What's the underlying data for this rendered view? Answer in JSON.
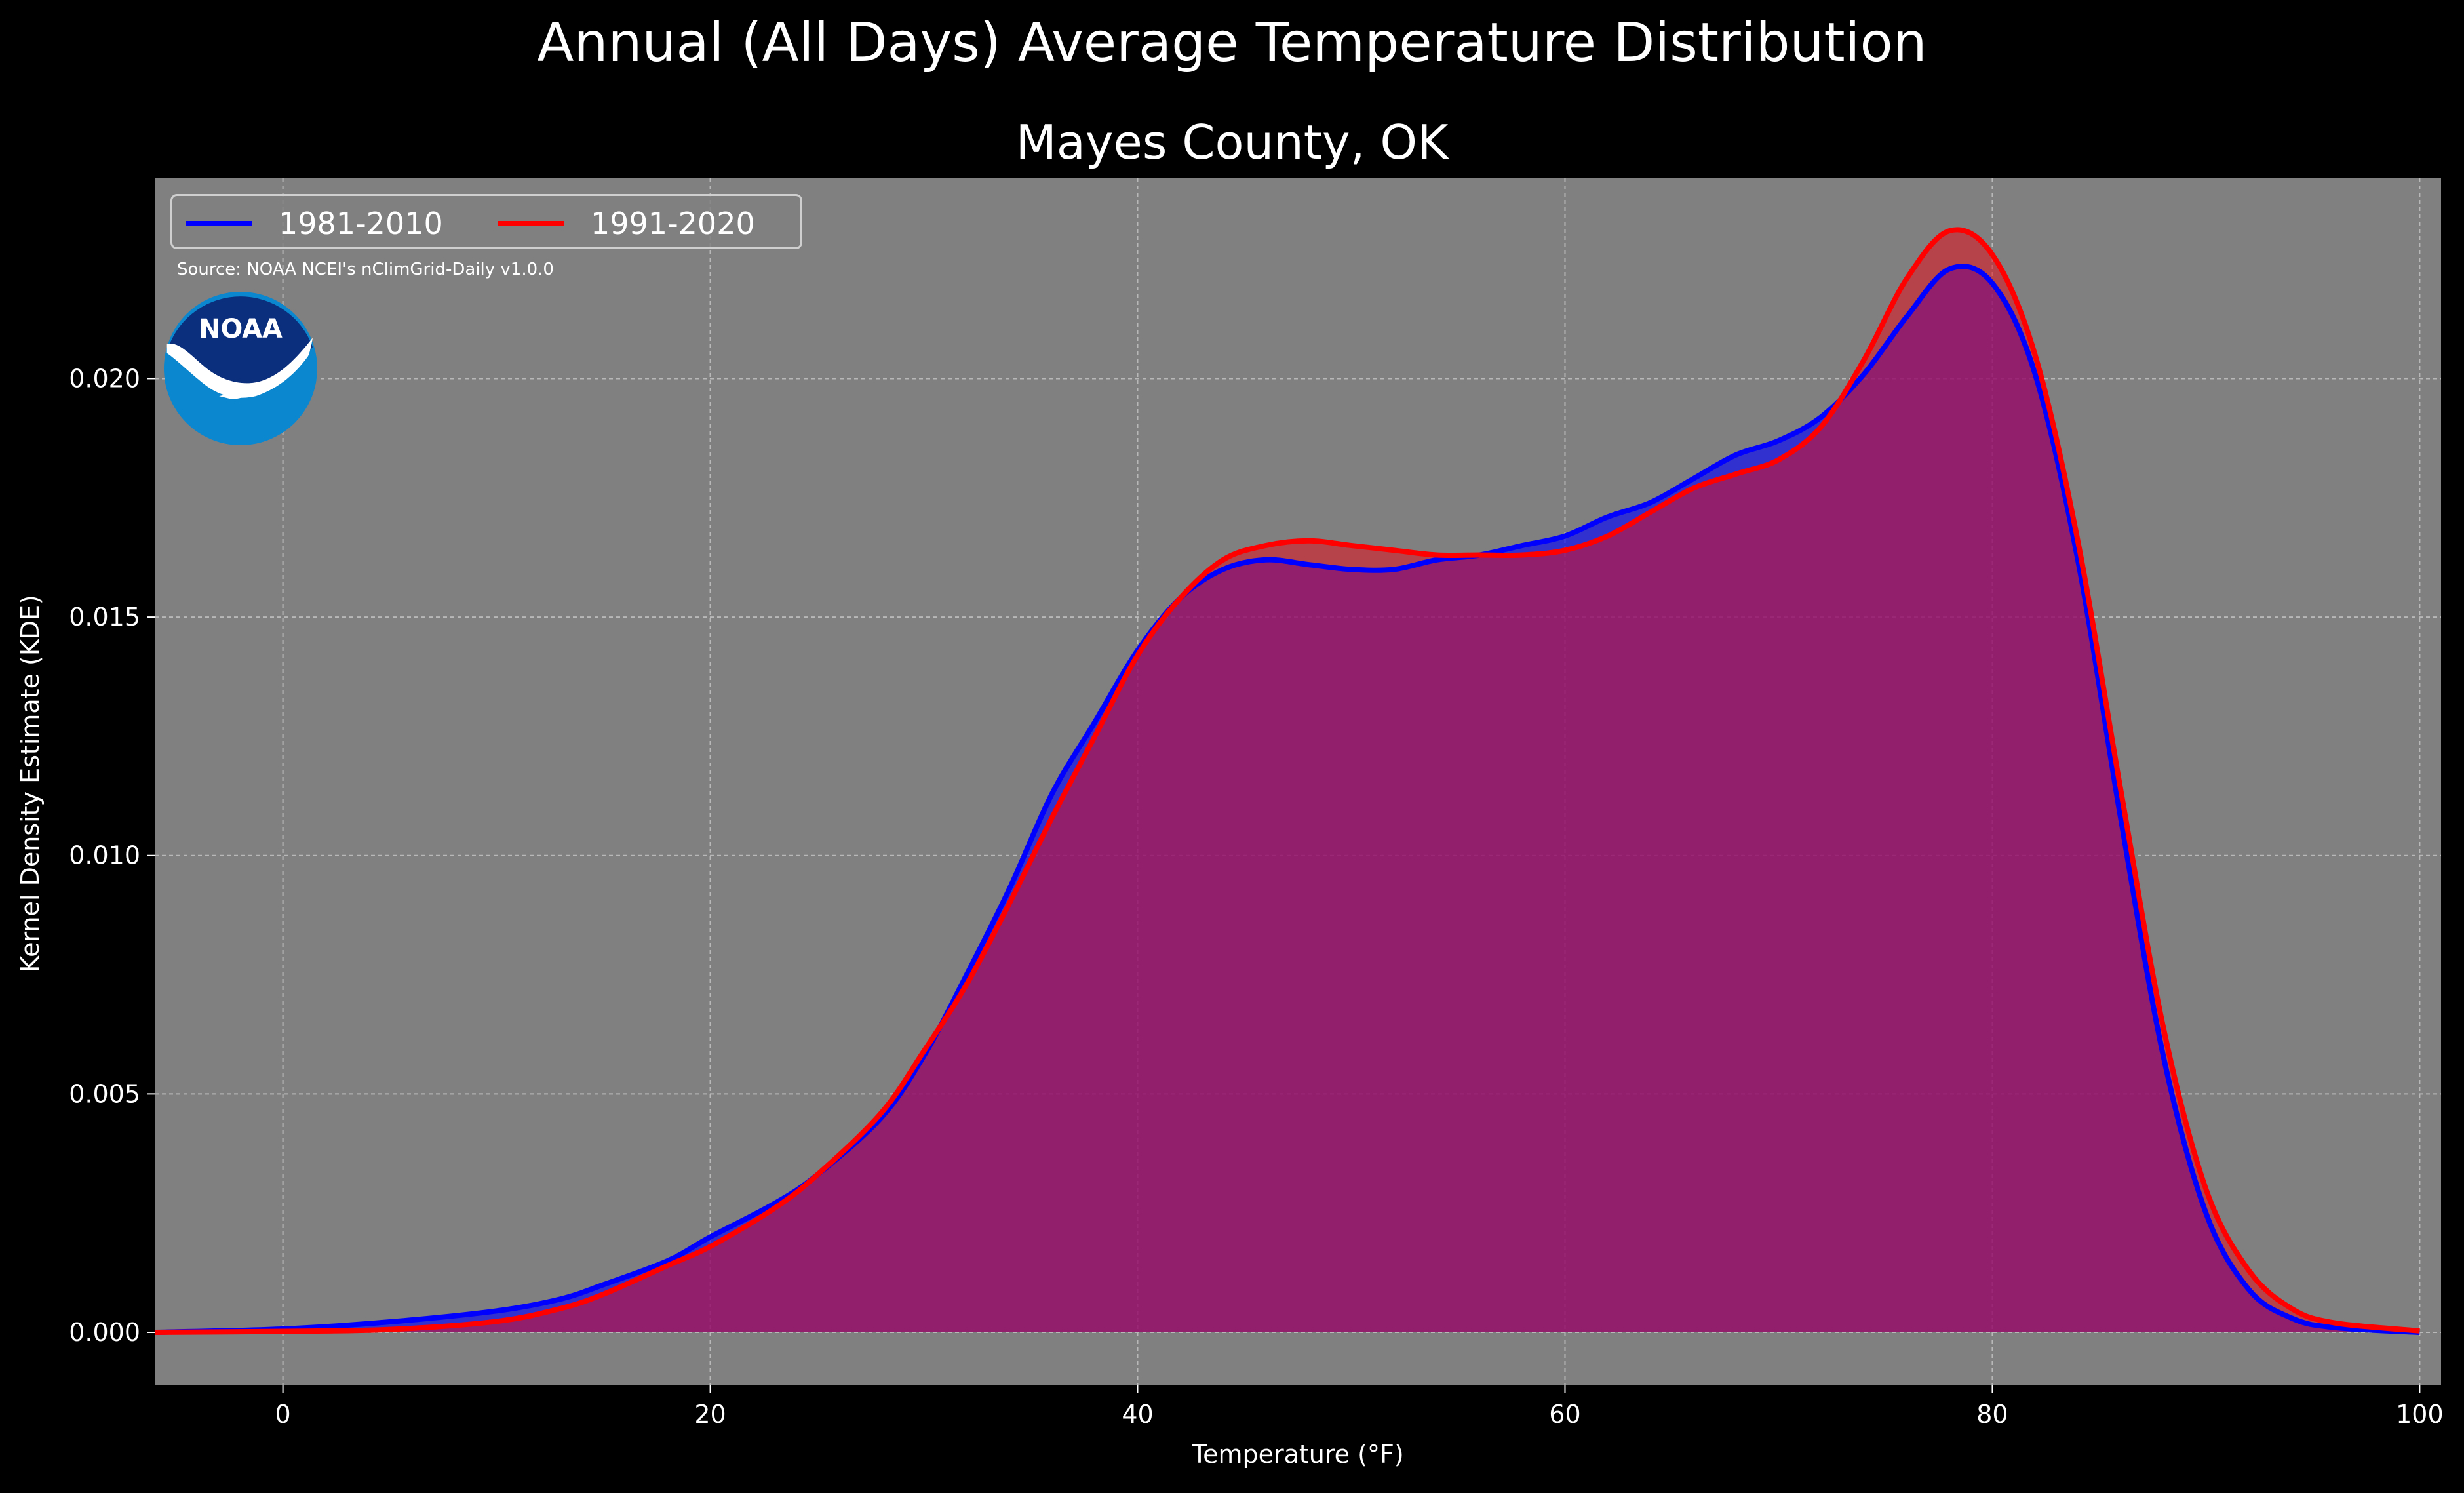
{
  "figure": {
    "suptitle": "Annual (All Days) Average Temperature Distribution",
    "subtitle": "Mayes County, OK",
    "source": "Source: NOAA NCEI's nClimGrid-Daily v1.0.0",
    "logo_text": "NOAA"
  },
  "chart_data": {
    "type": "area",
    "xlabel": "Temperature (°F)",
    "ylabel": "Kernel Density Estimate (KDE)",
    "xlim": [
      -6,
      101
    ],
    "ylim": [
      -0.0011,
      0.0242
    ],
    "xticks": [
      0,
      20,
      40,
      60,
      80,
      100
    ],
    "yticks": [
      "0.000",
      "0.005",
      "0.010",
      "0.015",
      "0.020"
    ],
    "grid": true,
    "legend_position": "upper-left",
    "colors": {
      "plot_bg": "#808080",
      "figure_bg": "#000000"
    },
    "series": [
      {
        "name": "1981-2010",
        "color": "#0000ff",
        "fill": "#0000ff",
        "points": [
          [
            -6,
            0.0
          ],
          [
            0,
            7e-05
          ],
          [
            5,
            0.00022
          ],
          [
            10,
            0.00045
          ],
          [
            13,
            0.0007
          ],
          [
            15,
            0.001
          ],
          [
            18,
            0.0015
          ],
          [
            20,
            0.002
          ],
          [
            23,
            0.0027
          ],
          [
            25,
            0.0033
          ],
          [
            28,
            0.0045
          ],
          [
            30,
            0.0058
          ],
          [
            32,
            0.0075
          ],
          [
            34,
            0.0093
          ],
          [
            36,
            0.0113
          ],
          [
            38,
            0.0128
          ],
          [
            40,
            0.0143
          ],
          [
            42,
            0.0154
          ],
          [
            44,
            0.016
          ],
          [
            46,
            0.0162
          ],
          [
            48,
            0.0161
          ],
          [
            50,
            0.016
          ],
          [
            52,
            0.016
          ],
          [
            54,
            0.0162
          ],
          [
            56,
            0.0163
          ],
          [
            58,
            0.0165
          ],
          [
            60,
            0.0167
          ],
          [
            62,
            0.0171
          ],
          [
            64,
            0.0174
          ],
          [
            66,
            0.0179
          ],
          [
            68,
            0.0184
          ],
          [
            70,
            0.0187
          ],
          [
            72,
            0.0192
          ],
          [
            74,
            0.0201
          ],
          [
            76,
            0.0213
          ],
          [
            78,
            0.0223
          ],
          [
            80,
            0.022
          ],
          [
            82,
            0.0201
          ],
          [
            84,
            0.0162
          ],
          [
            86,
            0.0108
          ],
          [
            88,
            0.0058
          ],
          [
            90,
            0.0025
          ],
          [
            92,
            0.0009
          ],
          [
            94,
            0.0003
          ],
          [
            96,
            0.0001
          ],
          [
            100,
            0.0
          ]
        ]
      },
      {
        "name": "1991-2020",
        "color": "#ff0000",
        "fill": "#e0101c",
        "points": [
          [
            -6,
            0.0
          ],
          [
            0,
            2e-05
          ],
          [
            5,
            6e-05
          ],
          [
            10,
            0.00023
          ],
          [
            13,
            0.0005
          ],
          [
            15,
            0.0008
          ],
          [
            18,
            0.0014
          ],
          [
            20,
            0.0018
          ],
          [
            23,
            0.0026
          ],
          [
            25,
            0.0033
          ],
          [
            28,
            0.0046
          ],
          [
            30,
            0.0059
          ],
          [
            32,
            0.0073
          ],
          [
            34,
            0.009
          ],
          [
            36,
            0.0108
          ],
          [
            38,
            0.0125
          ],
          [
            40,
            0.0142
          ],
          [
            42,
            0.0154
          ],
          [
            44,
            0.0162
          ],
          [
            46,
            0.0165
          ],
          [
            48,
            0.0166
          ],
          [
            50,
            0.0165
          ],
          [
            52,
            0.0164
          ],
          [
            54,
            0.0163
          ],
          [
            56,
            0.0163
          ],
          [
            58,
            0.0163
          ],
          [
            60,
            0.0164
          ],
          [
            62,
            0.0167
          ],
          [
            64,
            0.0172
          ],
          [
            66,
            0.0177
          ],
          [
            68,
            0.018
          ],
          [
            70,
            0.0183
          ],
          [
            72,
            0.019
          ],
          [
            74,
            0.0204
          ],
          [
            76,
            0.0221
          ],
          [
            78,
            0.0231
          ],
          [
            80,
            0.0226
          ],
          [
            82,
            0.0205
          ],
          [
            84,
            0.0166
          ],
          [
            86,
            0.0114
          ],
          [
            88,
            0.0064
          ],
          [
            90,
            0.003
          ],
          [
            92,
            0.0013
          ],
          [
            94,
            0.0005
          ],
          [
            96,
            0.0002
          ],
          [
            100,
            3e-05
          ]
        ]
      }
    ]
  }
}
